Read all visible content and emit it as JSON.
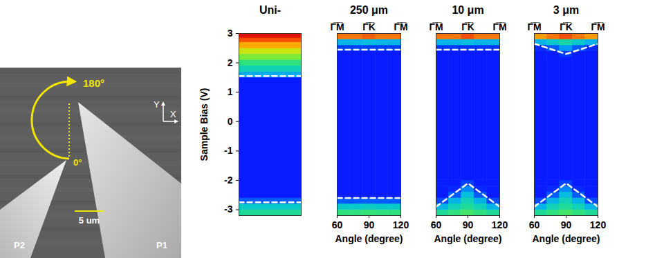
{
  "image": {
    "probes": [
      "P1",
      "P2"
    ],
    "angle_labels": [
      "0°",
      "180°"
    ],
    "axis_labels": [
      "Y",
      "X"
    ],
    "scale_bar": "5 um"
  },
  "chart_data": [
    {
      "type": "heatmap",
      "title": "Uni-",
      "ylabel": "Sample Bias (V)",
      "xlim": [
        60,
        120
      ],
      "ylim": [
        -3.2,
        3.0
      ],
      "yticks": [
        -3,
        -2,
        -1,
        0,
        1,
        2,
        3
      ],
      "tick_labels": "y",
      "zlim": [
        0,
        1
      ],
      "angle_edges": [
        60,
        120
      ],
      "bias_edges": [
        -3.2,
        -3.0,
        -2.8,
        -2.6,
        1.5,
        1.7,
        1.9,
        2.1,
        2.3,
        2.5,
        2.7,
        2.85,
        3.0
      ],
      "cells": [
        [
          0.42
        ],
        [
          0.35
        ],
        [
          0.15
        ],
        [
          0.02
        ],
        [
          0.28
        ],
        [
          0.38
        ],
        [
          0.45
        ],
        [
          0.55
        ],
        [
          0.65
        ],
        [
          0.78
        ],
        [
          0.9
        ],
        [
          0.98
        ]
      ],
      "band_edges": [
        {
          "x": [
            60,
            120
          ],
          "y": [
            1.55,
            1.55
          ],
          "color": "#ffffff",
          "line_style": "dashed"
        },
        {
          "x": [
            60,
            120
          ],
          "y": [
            -2.75,
            -2.75
          ],
          "color": "#ffffff",
          "line_style": "dashed"
        }
      ]
    },
    {
      "type": "heatmap",
      "title": "250 μm",
      "xlabel": "Angle (degree)",
      "xlim": [
        60,
        120
      ],
      "ylim": [
        -3.2,
        3.0
      ],
      "xticks": [
        60,
        90,
        120
      ],
      "x2ticks": [
        {
          "value": 60,
          "label": "Γ̅M̅"
        },
        {
          "value": 90,
          "label": "Γ̅K̅"
        },
        {
          "value": 120,
          "label": "Γ̅M̅"
        }
      ],
      "tick_labels": "x",
      "zlim": [
        0,
        1
      ],
      "angle_edges": [
        60,
        72,
        84,
        96,
        108,
        120
      ],
      "bias_edges": [
        -3.2,
        -3.0,
        -2.8,
        -2.6,
        2.4,
        2.6,
        2.8,
        3.0
      ],
      "cells": [
        [
          0.45,
          0.45,
          0.46,
          0.45,
          0.45
        ],
        [
          0.35,
          0.35,
          0.36,
          0.35,
          0.35
        ],
        [
          0.15,
          0.15,
          0.16,
          0.15,
          0.15
        ],
        [
          0.02,
          0.02,
          0.02,
          0.02,
          0.02
        ],
        [
          0.1,
          0.1,
          0.1,
          0.1,
          0.1
        ],
        [
          0.3,
          0.3,
          0.32,
          0.3,
          0.3
        ],
        [
          0.85,
          0.85,
          0.88,
          0.85,
          0.85
        ]
      ],
      "band_edges": [
        {
          "x": [
            60,
            120
          ],
          "y": [
            2.45,
            2.45
          ],
          "color": "#ffffff",
          "line_style": "dashed"
        },
        {
          "x": [
            60,
            120
          ],
          "y": [
            -2.6,
            -2.6
          ],
          "color": "#ffffff",
          "line_style": "dashed"
        }
      ]
    },
    {
      "type": "heatmap",
      "title": "10 μm",
      "xlabel": "Angle (degree)",
      "xlim": [
        60,
        120
      ],
      "ylim": [
        -3.2,
        3.0
      ],
      "xticks": [
        60,
        90,
        120
      ],
      "x2ticks": [
        {
          "value": 60,
          "label": "Γ̅M̅"
        },
        {
          "value": 90,
          "label": "Γ̅K̅"
        },
        {
          "value": 120,
          "label": "Γ̅M̅"
        }
      ],
      "tick_labels": "x",
      "zlim": [
        0,
        1
      ],
      "angle_edges": [
        60,
        72,
        84,
        96,
        108,
        120
      ],
      "bias_edges": [
        -3.2,
        -3.0,
        -2.8,
        -2.6,
        -2.4,
        -2.2,
        -2.0,
        2.4,
        2.6,
        2.8,
        3.0
      ],
      "cells": [
        [
          0.42,
          0.45,
          0.48,
          0.45,
          0.42
        ],
        [
          0.3,
          0.38,
          0.42,
          0.38,
          0.3
        ],
        [
          0.12,
          0.3,
          0.38,
          0.3,
          0.12
        ],
        [
          0.02,
          0.15,
          0.32,
          0.15,
          0.02
        ],
        [
          0.02,
          0.05,
          0.22,
          0.05,
          0.02
        ],
        [
          0.02,
          0.02,
          0.1,
          0.02,
          0.02
        ],
        [
          0.02,
          0.02,
          0.02,
          0.02,
          0.02
        ],
        [
          0.08,
          0.08,
          0.08,
          0.08,
          0.08
        ],
        [
          0.3,
          0.3,
          0.32,
          0.3,
          0.3
        ],
        [
          0.85,
          0.85,
          0.9,
          0.85,
          0.85
        ]
      ],
      "band_edges": [
        {
          "x": [
            60,
            120
          ],
          "y": [
            2.45,
            2.45
          ],
          "color": "#ffffff",
          "line_style": "dashed"
        },
        {
          "x": [
            60,
            90,
            120
          ],
          "y": [
            -2.9,
            -2.1,
            -2.9
          ],
          "color": "#ffffff",
          "line_style": "dashed"
        }
      ]
    },
    {
      "type": "heatmap",
      "title": "3 μm",
      "xlabel": "Angle (degree)",
      "xlim": [
        60,
        120
      ],
      "ylim": [
        -3.2,
        3.0
      ],
      "xticks": [
        60,
        90,
        120
      ],
      "x2ticks": [
        {
          "value": 60,
          "label": "Γ̅M̅"
        },
        {
          "value": 90,
          "label": "Γ̅K̅"
        },
        {
          "value": 120,
          "label": "Γ̅M̅"
        }
      ],
      "tick_labels": "x",
      "zlim": [
        0,
        1
      ],
      "angle_edges": [
        60,
        72,
        84,
        96,
        108,
        120
      ],
      "bias_edges": [
        -3.2,
        -3.0,
        -2.8,
        -2.6,
        -2.4,
        -2.2,
        -2.0,
        2.2,
        2.4,
        2.6,
        2.8,
        3.0
      ],
      "cells": [
        [
          0.42,
          0.45,
          0.48,
          0.45,
          0.42
        ],
        [
          0.3,
          0.38,
          0.42,
          0.38,
          0.3
        ],
        [
          0.12,
          0.3,
          0.38,
          0.3,
          0.12
        ],
        [
          0.02,
          0.15,
          0.32,
          0.15,
          0.02
        ],
        [
          0.02,
          0.05,
          0.22,
          0.05,
          0.02
        ],
        [
          0.02,
          0.02,
          0.1,
          0.02,
          0.02
        ],
        [
          0.02,
          0.02,
          0.02,
          0.02,
          0.02
        ],
        [
          0.02,
          0.02,
          0.08,
          0.02,
          0.02
        ],
        [
          0.05,
          0.15,
          0.25,
          0.15,
          0.05
        ],
        [
          0.3,
          0.35,
          0.4,
          0.35,
          0.3
        ],
        [
          0.8,
          0.85,
          0.9,
          0.85,
          0.8
        ]
      ],
      "band_edges": [
        {
          "x": [
            60,
            90,
            120
          ],
          "y": [
            2.65,
            2.3,
            2.65
          ],
          "color": "#ffffff",
          "line_style": "dashed"
        },
        {
          "x": [
            60,
            90,
            120
          ],
          "y": [
            -2.9,
            -2.1,
            -2.9
          ],
          "color": "#ffffff",
          "line_style": "dashed"
        }
      ]
    }
  ]
}
